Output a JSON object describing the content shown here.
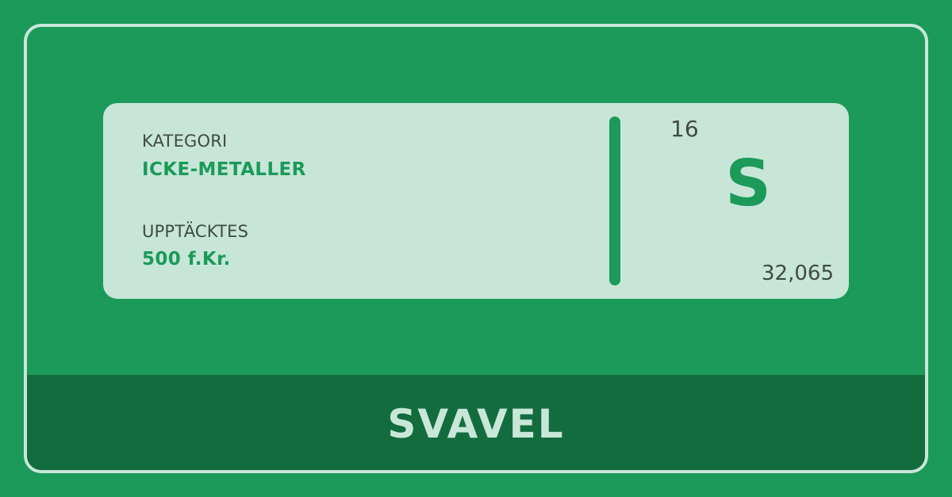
{
  "element": {
    "category_label": "KATEGORI",
    "category_value": "ICKE-METALLER",
    "discovered_label": "UPPTÄCKTES",
    "discovered_value": "500 f.Kr.",
    "atomic_number": "16",
    "symbol": "S",
    "atomic_mass": "32,065",
    "name": "SVAVEL"
  },
  "colors": {
    "background": "#1b9a59",
    "card": "#c7e6d8",
    "name_bar": "#136c3e",
    "frame_border": "#c9e7d8",
    "text_dark": "#3f4a46",
    "accent": "#1b9a59"
  }
}
